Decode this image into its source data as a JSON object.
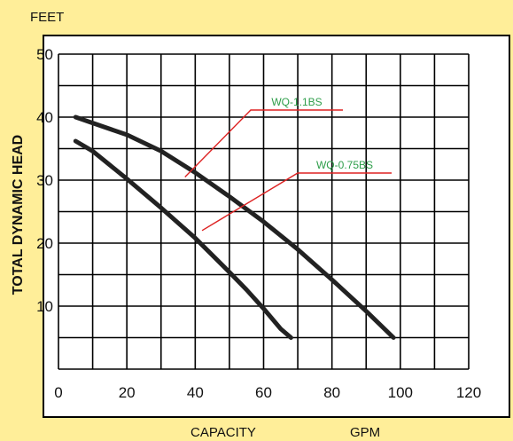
{
  "chart_data": {
    "type": "line",
    "y_unit_label": "FEET",
    "ylabel": "TOTAL DYNAMIC HEAD",
    "xlabel": "CAPACITY",
    "x_unit_label": "GPM",
    "xlim": [
      0,
      120
    ],
    "ylim": [
      0,
      50
    ],
    "x_ticks": [
      0,
      20,
      40,
      60,
      80,
      100,
      120
    ],
    "y_ticks": [
      10,
      20,
      30,
      40,
      50
    ],
    "x_grid_step": 10,
    "y_grid_step": 5,
    "grid": true,
    "series": [
      {
        "name": "WQ-1.1BS",
        "x": [
          5,
          20,
          30,
          40,
          50,
          60,
          70,
          80,
          90,
          98
        ],
        "y": [
          40,
          37.2,
          34.6,
          31.2,
          27.4,
          23.4,
          19,
          14.2,
          9.2,
          5
        ]
      },
      {
        "name": "WQ-0.75BS",
        "x": [
          5,
          10,
          20,
          30,
          40,
          50,
          55,
          60,
          65,
          68
        ],
        "y": [
          36.2,
          34.6,
          30.2,
          25.6,
          20.8,
          15.4,
          12.6,
          9.6,
          6.4,
          5
        ]
      }
    ],
    "annotations": [
      {
        "text": "WQ-1.1BS",
        "series": "WQ-1.1BS",
        "at_x": 37,
        "at_y": 30.5
      },
      {
        "text": "WQ-0.75BS",
        "series": "WQ-0.75BS",
        "at_x": 42,
        "at_y": 22
      }
    ],
    "colors": {
      "background": "#FFEE99",
      "plot_background": "#FFFFFF",
      "grid": "#000000",
      "curve": "#222222",
      "leader_line": "#DD2222",
      "annotation_text": "#2E9E4A"
    }
  }
}
